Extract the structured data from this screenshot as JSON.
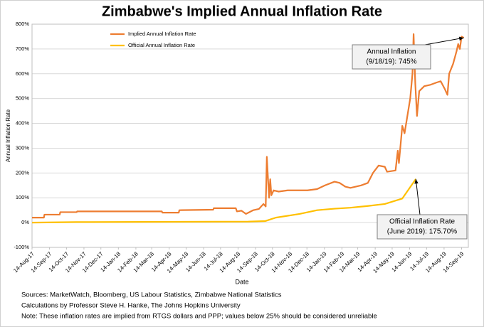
{
  "chart_data": {
    "type": "line",
    "title": "Zimbabwe's Implied Annual Inflation Rate",
    "x_label": "Date",
    "y_label": "Annual Inflation Rate",
    "xlim": [
      "2017-08-14",
      "2019-09-26"
    ],
    "xticks": [
      {
        "value": "2017-08-14",
        "label": "14-Aug-17"
      },
      {
        "value": "2017-09-14",
        "label": "14-Sep-17"
      },
      {
        "value": "2017-10-14",
        "label": "14-Oct-17"
      },
      {
        "value": "2017-11-14",
        "label": "14-Nov-17"
      },
      {
        "value": "2017-12-14",
        "label": "14-Dec-17"
      },
      {
        "value": "2018-01-14",
        "label": "14-Jan-18"
      },
      {
        "value": "2018-02-14",
        "label": "14-Feb-18"
      },
      {
        "value": "2018-03-14",
        "label": "14-Mar-18"
      },
      {
        "value": "2018-04-14",
        "label": "14-Apr-18"
      },
      {
        "value": "2018-05-14",
        "label": "14-May-18"
      },
      {
        "value": "2018-06-14",
        "label": "14-Jun-18"
      },
      {
        "value": "2018-07-14",
        "label": "14-Jul-18"
      },
      {
        "value": "2018-08-14",
        "label": "14-Aug-18"
      },
      {
        "value": "2018-09-14",
        "label": "14-Sep-18"
      },
      {
        "value": "2018-10-14",
        "label": "14-Oct-18"
      },
      {
        "value": "2018-11-14",
        "label": "14-Nov-18"
      },
      {
        "value": "2018-12-14",
        "label": "14-Dec-18"
      },
      {
        "value": "2019-01-14",
        "label": "14-Jan-19"
      },
      {
        "value": "2019-02-14",
        "label": "14-Feb-19"
      },
      {
        "value": "2019-03-14",
        "label": "14-Mar-19"
      },
      {
        "value": "2019-04-14",
        "label": "14-Apr-19"
      },
      {
        "value": "2019-05-14",
        "label": "14-May-19"
      },
      {
        "value": "2019-06-14",
        "label": "14-Jun-19"
      },
      {
        "value": "2019-07-14",
        "label": "14-Jul-19"
      },
      {
        "value": "2019-08-14",
        "label": "14-Aug-19"
      },
      {
        "value": "2019-09-14",
        "label": "14-Sep-19"
      }
    ],
    "ylim": [
      -100,
      800
    ],
    "yticks": [
      {
        "value": -100,
        "label": "-100%"
      },
      {
        "value": 0,
        "label": "0%"
      },
      {
        "value": 100,
        "label": "100%"
      },
      {
        "value": 200,
        "label": "200%"
      },
      {
        "value": 300,
        "label": "300%"
      },
      {
        "value": 400,
        "label": "400%"
      },
      {
        "value": 500,
        "label": "500%"
      },
      {
        "value": 600,
        "label": "600%"
      },
      {
        "value": 700,
        "label": "700%"
      },
      {
        "value": 800,
        "label": "800%"
      }
    ],
    "grid": true,
    "legend": "top-left",
    "series": [
      {
        "name": "Implied Annual Inflation Rate",
        "color": "#ed7d31",
        "x": [
          "2017-08-14",
          "2017-09-04",
          "2017-09-05",
          "2017-10-02",
          "2017-10-03",
          "2017-11-01",
          "2017-11-02",
          "2018-04-01",
          "2018-04-02",
          "2018-05-01",
          "2018-05-02",
          "2018-07-01",
          "2018-07-02",
          "2018-08-10",
          "2018-08-12",
          "2018-08-20",
          "2018-08-28",
          "2018-09-03",
          "2018-09-10",
          "2018-09-20",
          "2018-09-28",
          "2018-10-02",
          "2018-10-04",
          "2018-10-06",
          "2018-10-08",
          "2018-10-10",
          "2018-10-12",
          "2018-10-16",
          "2018-10-25",
          "2018-11-10",
          "2018-12-15",
          "2019-01-01",
          "2019-01-15",
          "2019-02-01",
          "2019-02-10",
          "2019-02-20",
          "2019-03-01",
          "2019-03-20",
          "2019-04-01",
          "2019-04-10",
          "2019-04-20",
          "2019-05-01",
          "2019-05-05",
          "2019-05-20",
          "2019-05-24",
          "2019-05-26",
          "2019-06-01",
          "2019-06-05",
          "2019-06-10",
          "2019-06-15",
          "2019-06-19",
          "2019-06-21",
          "2019-06-24",
          "2019-06-27",
          "2019-07-01",
          "2019-07-10",
          "2019-07-20",
          "2019-08-01",
          "2019-08-08",
          "2019-08-15",
          "2019-08-20",
          "2019-08-23",
          "2019-08-30",
          "2019-09-05",
          "2019-09-08",
          "2019-09-11",
          "2019-09-14",
          "2019-09-18"
        ],
        "values": [
          20,
          20,
          32,
          32,
          42,
          42,
          45,
          45,
          40,
          40,
          50,
          52,
          58,
          58,
          45,
          48,
          35,
          42,
          50,
          55,
          75,
          65,
          265,
          180,
          100,
          175,
          110,
          130,
          125,
          130,
          130,
          135,
          150,
          165,
          160,
          145,
          140,
          150,
          160,
          200,
          230,
          225,
          205,
          210,
          290,
          240,
          390,
          360,
          430,
          500,
          600,
          760,
          560,
          430,
          530,
          550,
          555,
          565,
          570,
          540,
          515,
          600,
          640,
          690,
          720,
          700,
          750,
          745
        ]
      },
      {
        "name": "Official Annual Inflation Rate",
        "color": "#ffc000",
        "x": [
          "2017-08-14",
          "2017-11-01",
          "2018-09-01",
          "2018-10-01",
          "2018-10-20",
          "2018-12-01",
          "2019-01-01",
          "2019-02-01",
          "2019-03-01",
          "2019-04-01",
          "2019-05-01",
          "2019-06-01",
          "2019-06-25"
        ],
        "values": [
          0,
          2,
          4,
          6,
          20,
          35,
          50,
          56,
          60,
          67,
          75,
          97,
          175.7
        ]
      }
    ],
    "annotations": [
      {
        "lines": [
          "Annual Inflation",
          "(9/18/19): 745%"
        ]
      },
      {
        "lines": [
          "Official Inflation Rate",
          "(June 2019): 175.70%"
        ]
      }
    ],
    "notes": [
      "Sources: MarketWatch, Bloomberg, US Labour Statistics, Zimbabwe National Statistics",
      "Calculations by Professor Steve H. Hanke, The Johns Hopkins University",
      "Note: These inflation rates are implied from RTGS dollars and PPP; values below 25% should be considered unreliable"
    ]
  }
}
